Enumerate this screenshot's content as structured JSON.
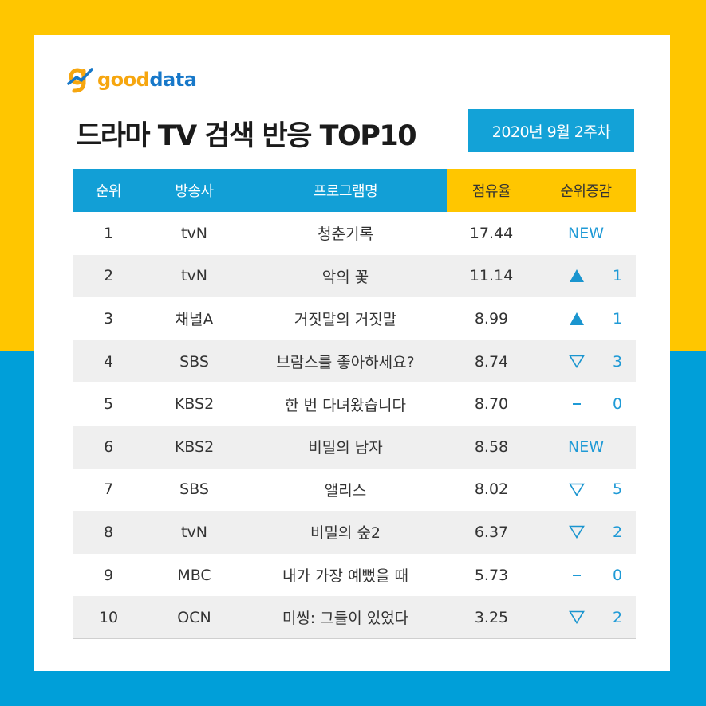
{
  "brand": {
    "logo_good": "good",
    "logo_data": "data",
    "icon": "gooddata-logo-icon"
  },
  "title": "드라마 TV 검색 반응 TOP10",
  "period": "2020년 9월 2주차",
  "colors": {
    "yellow": "#ffc600",
    "blue": "#009fd9",
    "header_blue": "#129fd6",
    "accent_text": "#1f9ad6"
  },
  "table": {
    "headers": [
      "순위",
      "방송사",
      "프로그램명",
      "점유율",
      "순위증감"
    ],
    "rows": [
      {
        "rank": "1",
        "station": "tvN",
        "program": "청춘기록",
        "share": "17.44",
        "change_type": "new",
        "change_label": "NEW",
        "change_value": ""
      },
      {
        "rank": "2",
        "station": "tvN",
        "program": "악의 꽃",
        "share": "11.14",
        "change_type": "up",
        "change_label": "",
        "change_value": "1"
      },
      {
        "rank": "3",
        "station": "채널A",
        "program": "거짓말의 거짓말",
        "share": "8.99",
        "change_type": "up",
        "change_label": "",
        "change_value": "1"
      },
      {
        "rank": "4",
        "station": "SBS",
        "program": "브람스를 좋아하세요?",
        "share": "8.74",
        "change_type": "down",
        "change_label": "",
        "change_value": "3"
      },
      {
        "rank": "5",
        "station": "KBS2",
        "program": "한 번 다녀왔습니다",
        "share": "8.70",
        "change_type": "same",
        "change_label": "",
        "change_value": "0"
      },
      {
        "rank": "6",
        "station": "KBS2",
        "program": "비밀의 남자",
        "share": "8.58",
        "change_type": "new",
        "change_label": "NEW",
        "change_value": ""
      },
      {
        "rank": "7",
        "station": "SBS",
        "program": "앨리스",
        "share": "8.02",
        "change_type": "down",
        "change_label": "",
        "change_value": "5"
      },
      {
        "rank": "8",
        "station": "tvN",
        "program": "비밀의 숲2",
        "share": "6.37",
        "change_type": "down",
        "change_label": "",
        "change_value": "2"
      },
      {
        "rank": "9",
        "station": "MBC",
        "program": "내가 가장 예뻤을 때",
        "share": "5.73",
        "change_type": "same",
        "change_label": "",
        "change_value": "0"
      },
      {
        "rank": "10",
        "station": "OCN",
        "program": "미씽: 그들이 있었다",
        "share": "3.25",
        "change_type": "down",
        "change_label": "",
        "change_value": "2"
      }
    ]
  }
}
